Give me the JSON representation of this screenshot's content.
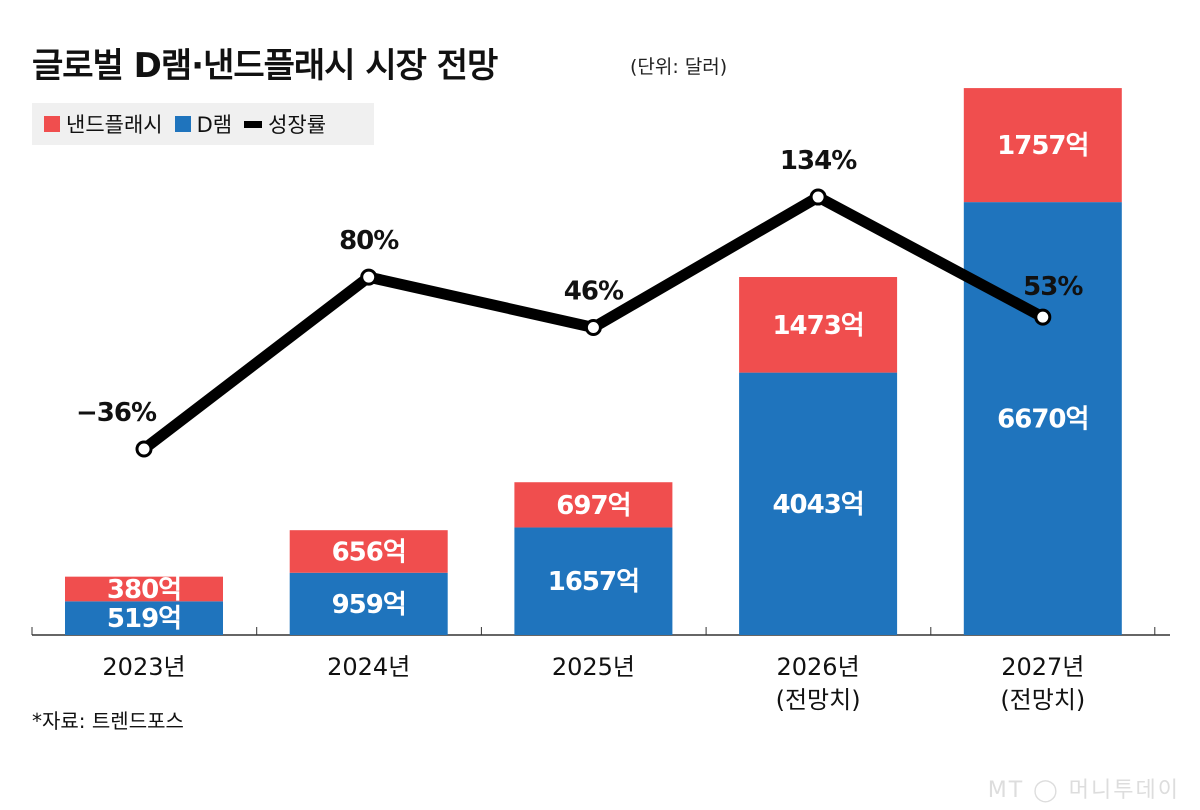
{
  "title": "글로벌 D램·낸드플래시 시장 전망",
  "unit": "(단위: 달러)",
  "source": "*자료: 트렌드포스",
  "watermark": "MT 머니투데이",
  "colors": {
    "nand": "#f04e4e",
    "dram": "#1f74bd",
    "growth": "#000000"
  },
  "chart_data": {
    "type": "bar",
    "stacked": true,
    "categories": [
      "2023년",
      "2024년",
      "2025년",
      "2026년\n(전망치)",
      "2027년\n(전망치)"
    ],
    "series": [
      {
        "name": "D램",
        "values": [
          519,
          959,
          1657,
          4043,
          6670
        ],
        "labels": [
          "519억",
          "959억",
          "1657억",
          "4043억",
          "6670억"
        ]
      },
      {
        "name": "낸드플래시",
        "values": [
          380,
          656,
          697,
          1473,
          1757
        ],
        "labels": [
          "380억",
          "656억",
          "697억",
          "1473억",
          "1757억"
        ]
      },
      {
        "name": "성장률",
        "type": "line",
        "values": [
          -36,
          80,
          46,
          134,
          53
        ],
        "labels": [
          "−36%",
          "80%",
          "46%",
          "134%",
          "53%"
        ]
      }
    ],
    "legend": [
      "낸드플래시",
      "D램",
      "성장률"
    ],
    "legend_position": "top-left",
    "grid": false
  }
}
